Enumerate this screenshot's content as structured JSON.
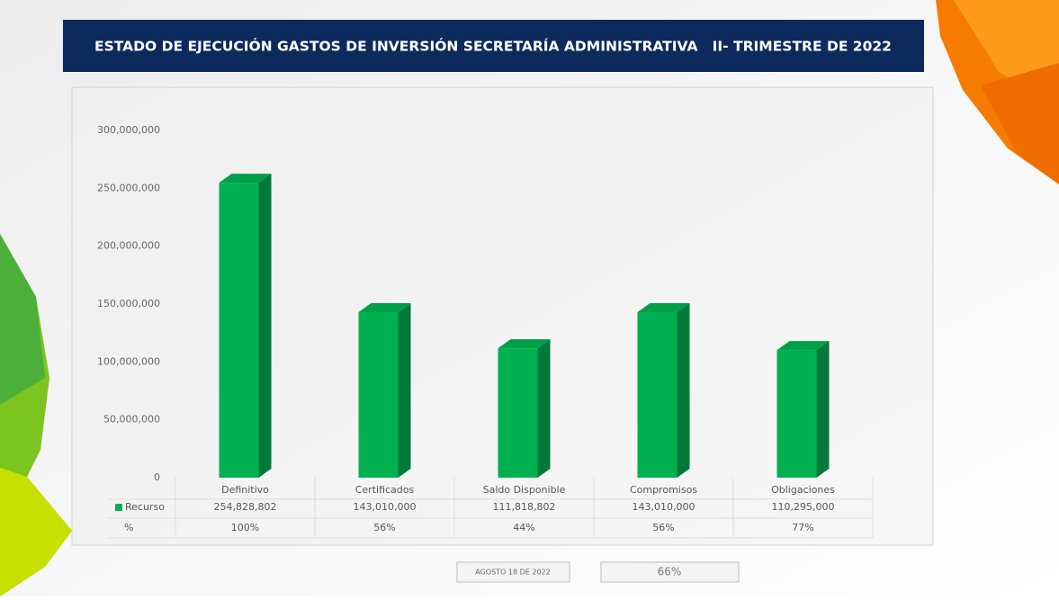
{
  "chart_data": {
    "type": "bar",
    "title": "ESTADO DE EJECUCIÓN GASTOS DE INVERSIÓN SECRETARÍA ADMINISTRATIVA   II- TRIMESTRE DE 2022",
    "categories": [
      "Definitivo",
      "Certificados",
      "Saldo Disponible",
      "Compromisos",
      "Obligaciones"
    ],
    "series": [
      {
        "name": "Recurso",
        "color": "#00b050",
        "values": [
          254828802,
          143010000,
          111818802,
          143010000,
          110295000
        ],
        "value_labels": [
          "254,828,802",
          "143,010,000",
          "111,818,802",
          "143,010,000",
          "110,295,000"
        ]
      },
      {
        "name": "%",
        "values": [
          100,
          56,
          44,
          56,
          77
        ],
        "value_labels": [
          "100%",
          "56%",
          "44%",
          "56%",
          "77%"
        ]
      }
    ],
    "ylim": [
      0,
      300000000
    ],
    "yticks": [
      0,
      {
        "value": 50000000,
        "label": "50,000,000"
      },
      {
        "value": 100000000,
        "label": "100,000,000"
      },
      {
        "value": 150000000,
        "label": "150,000,000"
      },
      {
        "value": 200000000,
        "label": "200,000,000"
      },
      {
        "value": 250000000,
        "label": "250,000,000"
      },
      {
        "value": 300000000,
        "label": "300,000,000"
      }
    ],
    "grid": false,
    "annotations": [
      "AGOSTO 18 DE 2022",
      "66%"
    ]
  }
}
